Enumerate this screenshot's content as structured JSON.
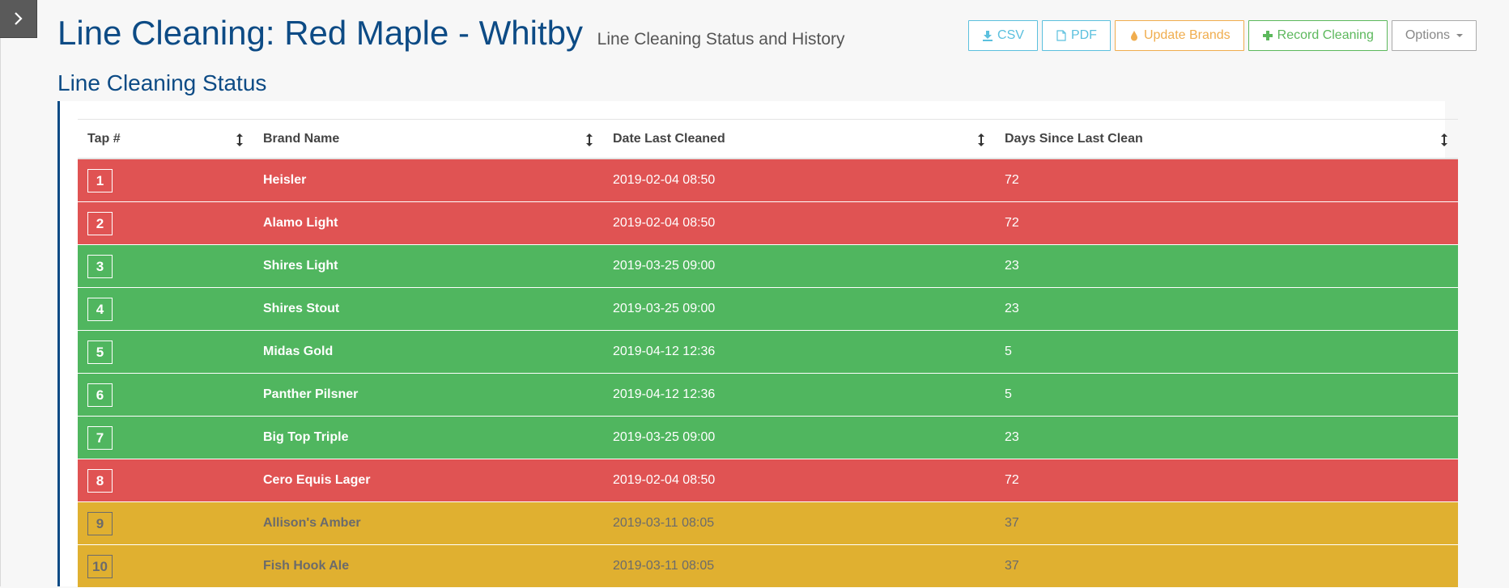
{
  "header": {
    "title": "Line Cleaning: Red Maple - Whitby",
    "subtitle": "Line Cleaning Status and History"
  },
  "toolbar": {
    "csv_label": "CSV",
    "pdf_label": "PDF",
    "update_brands_label": "Update Brands",
    "record_cleaning_label": "Record Cleaning",
    "options_label": "Options"
  },
  "section": {
    "title": "Line Cleaning Status"
  },
  "table": {
    "columns": [
      "Tap #",
      "Brand Name",
      "Date Last Cleaned",
      "Days Since Last Clean"
    ],
    "rows": [
      {
        "tap": "1",
        "brand": "Heisler",
        "date": "2019-02-04 08:50",
        "days": "72",
        "status": "red"
      },
      {
        "tap": "2",
        "brand": "Alamo Light",
        "date": "2019-02-04 08:50",
        "days": "72",
        "status": "red"
      },
      {
        "tap": "3",
        "brand": "Shires Light",
        "date": "2019-03-25 09:00",
        "days": "23",
        "status": "green"
      },
      {
        "tap": "4",
        "brand": "Shires Stout",
        "date": "2019-03-25 09:00",
        "days": "23",
        "status": "green"
      },
      {
        "tap": "5",
        "brand": "Midas Gold",
        "date": "2019-04-12 12:36",
        "days": "5",
        "status": "green"
      },
      {
        "tap": "6",
        "brand": "Panther Pilsner",
        "date": "2019-04-12 12:36",
        "days": "5",
        "status": "green"
      },
      {
        "tap": "7",
        "brand": "Big Top Triple",
        "date": "2019-03-25 09:00",
        "days": "23",
        "status": "green"
      },
      {
        "tap": "8",
        "brand": "Cero Equis Lager",
        "date": "2019-02-04 08:50",
        "days": "72",
        "status": "red"
      },
      {
        "tap": "9",
        "brand": "Allison's Amber",
        "date": "2019-03-11 08:05",
        "days": "37",
        "status": "yellow"
      },
      {
        "tap": "10",
        "brand": "Fish Hook Ale",
        "date": "2019-03-11 08:05",
        "days": "37",
        "status": "yellow"
      }
    ]
  },
  "colors": {
    "red": "#e05353",
    "green": "#50b65f",
    "yellow": "#e0b030",
    "brand_blue": "#0d4b85"
  }
}
